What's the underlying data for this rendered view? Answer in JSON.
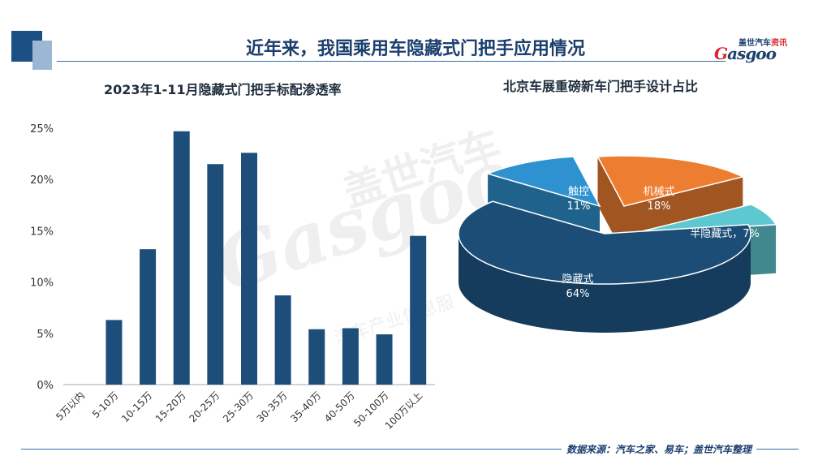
{
  "page": {
    "title": "近年来，我国乘用车隐藏式门把手应用情况",
    "logo_top": "盖世汽车",
    "logo_top_highlight": "资讯",
    "logo_main": "asgoo",
    "logo_mark": "G",
    "watermark_cn": "盖世汽车",
    "watermark_en": "Gasgoo",
    "watermark_sub": "汽车产业信息服",
    "source": "数据来源：汽车之家、易车；盖世汽车整理"
  },
  "colors": {
    "bar": "#1d4e7a",
    "pie_hidden": "#1b4d76",
    "pie_touch": "#2e92d0",
    "pie_mech": "#ed7d31",
    "pie_semi": "#5ec8d0",
    "accent": "#1c4f84"
  },
  "chart_data": [
    {
      "type": "bar",
      "title": "2023年1-11月隐藏式门把手标配渗透率",
      "categories": [
        "5万以内",
        "5-10万",
        "10-15万",
        "15-20万",
        "20-25万",
        "25-30万",
        "30-35万",
        "35-40万",
        "40-50万",
        "50-100万",
        "100万以上"
      ],
      "values": [
        0,
        6.3,
        13.2,
        24.7,
        21.5,
        22.6,
        8.7,
        5.4,
        5.5,
        4.9,
        14.5
      ],
      "unit": "%",
      "ylim": [
        0,
        25
      ],
      "yticks": [
        "0%",
        "5%",
        "10%",
        "15%",
        "20%",
        "25%"
      ],
      "grid": false
    },
    {
      "type": "pie",
      "title": "北京车展重磅新车门把手设计占比",
      "slices": [
        {
          "label": "隐藏式",
          "value": 64,
          "display": "64%"
        },
        {
          "label": "触控",
          "value": 11,
          "display": "11%"
        },
        {
          "label": "机械式",
          "value": 18,
          "display": "18%"
        },
        {
          "label": "半隐藏式",
          "value": 7,
          "display": "半隐藏式，7%"
        }
      ]
    }
  ]
}
